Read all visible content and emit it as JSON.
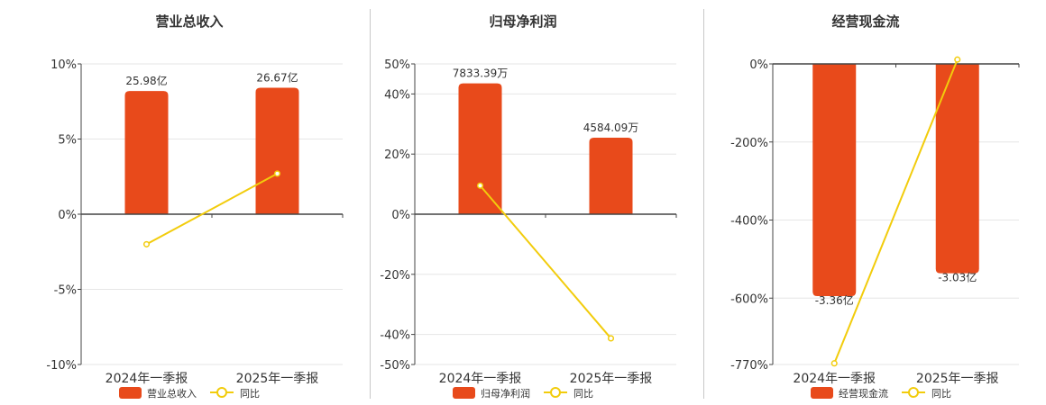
{
  "colors": {
    "bar": "#e84a1b",
    "line": "#f2cc0c",
    "axis": "#444444",
    "grid": "#e6e6e6",
    "text": "#333333"
  },
  "chart_data": [
    {
      "type": "bar",
      "title": "营业总收入",
      "categories": [
        "2024年一季报",
        "2025年一季报"
      ],
      "bar_series": {
        "name": "营业总收入",
        "values": [
          25.98,
          26.67
        ],
        "labels": [
          "25.98亿",
          "26.67亿"
        ],
        "unit": "亿"
      },
      "line_series": {
        "name": "同比",
        "values": [
          -2.0,
          2.7
        ]
      },
      "ylim": [
        -10,
        10
      ],
      "yticks": [
        10,
        5,
        0,
        -5,
        -10
      ],
      "ytick_labels": [
        "10%",
        "5%",
        "0%",
        "-5%",
        "-10%"
      ],
      "bar_axis_max": 31.7,
      "grid": true,
      "legend_position": "bottom"
    },
    {
      "type": "bar",
      "title": "归母净利润",
      "categories": [
        "2024年一季报",
        "2025年一季报"
      ],
      "bar_series": {
        "name": "归母净利润",
        "values": [
          7833.39,
          4584.09
        ],
        "labels": [
          "7833.39万",
          "4584.09万"
        ],
        "unit": "万"
      },
      "line_series": {
        "name": "同比",
        "values": [
          9.5,
          -41.3
        ]
      },
      "ylim": [
        -50,
        50
      ],
      "yticks": [
        50,
        40,
        20,
        0,
        -20,
        -40,
        -50
      ],
      "ytick_labels": [
        "50%",
        "40%",
        "20%",
        "0%",
        "-20%",
        "-40%",
        "-50%"
      ],
      "bar_axis_max": 9000,
      "grid": true,
      "legend_position": "bottom"
    },
    {
      "type": "bar",
      "title": "经营现金流",
      "categories": [
        "2024年一季报",
        "2025年一季报"
      ],
      "bar_series": {
        "name": "经营现金流",
        "values": [
          -3.36,
          -3.03
        ],
        "labels": [
          "-3.36亿",
          "-3.03亿"
        ],
        "unit": "亿"
      },
      "line_series": {
        "name": "同比",
        "values": [
          -767,
          11
        ]
      },
      "ylim": [
        -770,
        0
      ],
      "yticks": [
        0,
        -200,
        -400,
        -600,
        -770
      ],
      "ytick_labels": [
        "0%",
        "-200%",
        "-400%",
        "-600%",
        "-770%"
      ],
      "bar_axis_min": -4.35,
      "grid": true,
      "legend_position": "bottom"
    }
  ]
}
